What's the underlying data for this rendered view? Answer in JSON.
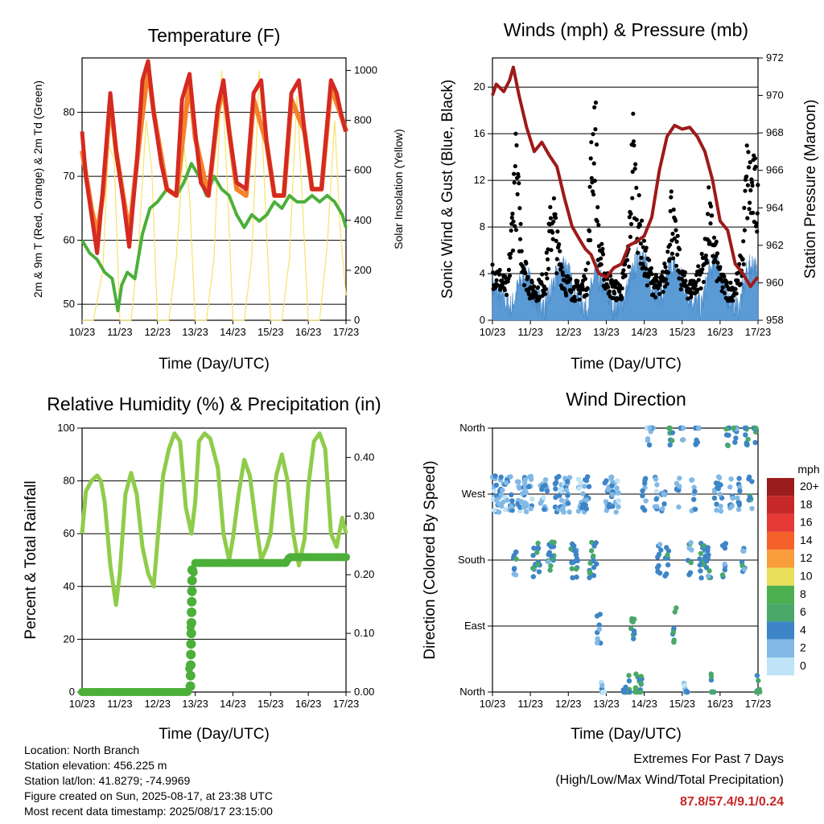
{
  "x_ticks": [
    "10/23",
    "11/23",
    "12/23",
    "13/23",
    "14/23",
    "15/23",
    "16/23",
    "17/23"
  ],
  "x_label": "Time (Day/UTC)",
  "panels": {
    "temperature": {
      "title": "Temperature (F)",
      "ylabel": "2m & 9m T (Red, Orange) & 2m Td (Green)",
      "y2label": "Solar Insolation (Yellow)",
      "yticks": [
        "50",
        "60",
        "70",
        "80"
      ],
      "y2ticks": [
        "0",
        "200",
        "400",
        "600",
        "800",
        "1000"
      ]
    },
    "winds": {
      "title": "Winds (mph) & Pressure (mb)",
      "ylabel": "Sonic Wind & Gust (Blue, Black)",
      "y2label": "Station Pressure (Maroon)",
      "yticks": [
        "0",
        "4",
        "8",
        "12",
        "16",
        "20"
      ],
      "y2ticks": [
        "958",
        "960",
        "962",
        "964",
        "966",
        "968",
        "970",
        "972"
      ]
    },
    "humidity": {
      "title": "Relative Humidity (%) & Precipitation (in)",
      "ylabel": "Percent & Total Rainfall",
      "yticks": [
        "0",
        "20",
        "40",
        "60",
        "80",
        "100"
      ],
      "y2ticks": [
        "0.00",
        "0.10",
        "0.20",
        "0.30",
        "0.40"
      ]
    },
    "direction": {
      "title": "Wind Direction",
      "ylabel": "Direction (Colored By Speed)",
      "yticks": [
        "North",
        "East",
        "South",
        "West",
        "North"
      ],
      "legend_title": "mph",
      "legend_labels": [
        "20+",
        "18",
        "16",
        "14",
        "12",
        "10",
        "8",
        "6",
        "4",
        "2",
        "0"
      ],
      "legend_colors": [
        "#9b1c1c",
        "#c62828",
        "#e53935",
        "#f4622a",
        "#f99c3b",
        "#e8df5a",
        "#4caf50",
        "#4aa86a",
        "#3d85c6",
        "#82b9e6",
        "#bfe3f7"
      ]
    }
  },
  "info": {
    "location": "Location: North Branch",
    "elevation": "Station elevation: 456.225 m",
    "latlon": "Station lat/lon: 41.8279; -74.9969",
    "created": "Figure created on Sun, 2025-08-17, at 23:38 UTC",
    "recent": "Most recent data timestamp: 2025/08/17 23:15:00"
  },
  "extremes": {
    "title": "Extremes For Past 7 Days",
    "subtitle": "(High/Low/Max Wind/Total Precipitation)",
    "values": "87.8/57.4/9.1/0.24"
  },
  "chart_data": [
    {
      "type": "line",
      "x_unit": "day of month (UTC)",
      "xlim": [
        10,
        17
      ],
      "ylim": [
        47.5,
        88.5
      ],
      "y2lim": [
        0,
        1050
      ],
      "series_2m_temp": {
        "x": [
          10.0,
          10.1,
          10.25,
          10.4,
          10.55,
          10.75,
          10.9,
          11.1,
          11.25,
          11.45,
          11.6,
          11.75,
          11.9,
          12.1,
          12.25,
          12.5,
          12.65,
          12.85,
          13.0,
          13.15,
          13.35,
          13.6,
          13.75,
          13.9,
          14.1,
          14.35,
          14.55,
          14.75,
          14.9,
          15.1,
          15.35,
          15.55,
          15.75,
          15.9,
          16.1,
          16.35,
          16.6,
          16.75,
          16.9,
          17.0
        ],
        "y": [
          77,
          70,
          64,
          58,
          68,
          83,
          74,
          66,
          59,
          72,
          85,
          88,
          80,
          72,
          68,
          67,
          82,
          86,
          77,
          69,
          67,
          81,
          85,
          77,
          69,
          68,
          83,
          85,
          75,
          67,
          67,
          83,
          85,
          77,
          68,
          68,
          85,
          83,
          79,
          77
        ]
      },
      "series_9m_temp": {
        "x": [
          10.0,
          10.25,
          10.4,
          10.55,
          10.75,
          10.9,
          11.25,
          11.45,
          11.75,
          11.9,
          12.25,
          12.5,
          12.85,
          13.0,
          13.35,
          13.6,
          13.75,
          14.1,
          14.35,
          14.55,
          14.9,
          15.1,
          15.35,
          15.55,
          15.9,
          16.1,
          16.35,
          16.6,
          16.9,
          17.0
        ],
        "y": [
          74,
          65,
          61,
          67,
          82,
          74,
          61,
          72,
          87,
          80,
          68,
          67,
          85,
          76,
          67,
          80,
          84,
          68,
          67,
          82,
          75,
          67,
          67,
          82,
          77,
          68,
          68,
          84,
          79,
          77
        ]
      },
      "series_2m_dewpoint": {
        "x": [
          10.0,
          10.2,
          10.4,
          10.6,
          10.8,
          10.95,
          11.05,
          11.2,
          11.4,
          11.6,
          11.8,
          12.0,
          12.25,
          12.5,
          12.7,
          12.9,
          13.1,
          13.3,
          13.5,
          13.7,
          13.9,
          14.1,
          14.3,
          14.5,
          14.7,
          14.9,
          15.1,
          15.3,
          15.5,
          15.7,
          15.9,
          16.1,
          16.3,
          16.5,
          16.7,
          16.9,
          17.0
        ],
        "y": [
          60,
          58,
          57,
          55,
          54,
          49,
          53,
          55,
          54,
          61,
          65,
          66,
          68,
          67,
          69,
          72,
          70,
          67,
          70,
          68,
          67,
          64,
          62,
          64,
          63,
          64,
          66,
          65,
          67,
          66,
          66,
          67,
          66,
          67,
          66,
          64,
          62
        ]
      },
      "series_solar": {
        "x": [
          10.0,
          10.3,
          10.55,
          10.7,
          10.85,
          11.0,
          11.3,
          11.5,
          11.7,
          11.85,
          12.0,
          12.3,
          12.5,
          12.7,
          12.85,
          13.0,
          13.3,
          13.5,
          13.7,
          13.85,
          14.0,
          14.3,
          14.5,
          14.7,
          14.85,
          15.0,
          15.3,
          15.5,
          15.7,
          15.85,
          16.0,
          16.3,
          16.5,
          16.7,
          16.85,
          17.0
        ],
        "y": [
          0,
          0,
          200,
          700,
          650,
          0,
          0,
          300,
          800,
          600,
          0,
          0,
          250,
          700,
          500,
          0,
          0,
          250,
          1000,
          550,
          0,
          0,
          250,
          1000,
          500,
          0,
          0,
          250,
          900,
          450,
          0,
          0,
          300,
          800,
          350,
          100
        ]
      }
    },
    {
      "type": "scatter",
      "xlim": [
        10,
        17
      ],
      "ylim": [
        0,
        22.5
      ],
      "y2lim": [
        958,
        972
      ],
      "series_sonic_wind": {
        "x": [
          10.0,
          10.2,
          10.5,
          10.7,
          10.9,
          11.1,
          11.4,
          11.6,
          11.9,
          12.2,
          12.5,
          12.7,
          12.9,
          13.2,
          13.5,
          13.7,
          13.9,
          14.2,
          14.5,
          14.7,
          14.9,
          15.2,
          15.5,
          15.7,
          15.9,
          16.2,
          16.5,
          16.7,
          16.9,
          17.0
        ],
        "y": [
          3,
          2,
          1,
          3,
          4,
          2,
          1,
          3,
          5,
          2,
          1,
          4,
          3,
          1,
          2,
          4,
          6,
          3,
          2,
          5,
          4,
          2,
          1,
          4,
          5,
          2,
          1,
          4,
          5,
          3
        ]
      },
      "series_gust": {
        "x": [
          10.0,
          10.2,
          10.4,
          10.5,
          10.6,
          10.8,
          11.0,
          11.2,
          11.4,
          11.5,
          11.6,
          11.7,
          11.9,
          12.1,
          12.3,
          12.5,
          12.6,
          12.7,
          12.8,
          13.0,
          13.2,
          13.4,
          13.6,
          13.7,
          13.8,
          14.0,
          14.2,
          14.4,
          14.6,
          14.7,
          14.8,
          15.0,
          15.2,
          15.4,
          15.6,
          15.7,
          15.8,
          16.0,
          16.2,
          16.4,
          16.6,
          16.7,
          16.8,
          17.0
        ],
        "y": [
          5,
          4,
          3,
          8,
          15,
          6,
          3,
          3,
          4,
          8,
          11,
          7,
          4,
          3,
          3,
          4,
          14,
          20,
          7,
          4,
          3,
          3,
          7,
          17,
          11,
          6,
          4,
          3,
          5,
          11,
          8,
          4,
          3,
          4,
          6,
          10,
          8,
          4,
          3,
          3,
          6,
          14,
          13,
          12
        ]
      },
      "series_pressure": {
        "x": [
          10.0,
          10.1,
          10.3,
          10.45,
          10.55,
          10.7,
          10.9,
          11.1,
          11.3,
          11.5,
          11.7,
          11.9,
          12.1,
          12.3,
          12.45,
          12.6,
          12.8,
          13.0,
          13.2,
          13.4,
          13.6,
          13.8,
          14.0,
          14.2,
          14.4,
          14.6,
          14.8,
          15.0,
          15.2,
          15.4,
          15.6,
          15.8,
          16.0,
          16.2,
          16.4,
          16.6,
          16.8,
          16.95,
          17.0
        ],
        "y": [
          970,
          970.6,
          970.2,
          970.8,
          971.5,
          970,
          968.3,
          967,
          967.5,
          966.8,
          966.2,
          964.5,
          963,
          962.3,
          961.8,
          961.5,
          960.5,
          960.3,
          960.8,
          961,
          962,
          962.2,
          962.5,
          963.5,
          966,
          967.8,
          968.4,
          968.2,
          968.3,
          967.8,
          967,
          965.5,
          963.3,
          962.8,
          961,
          960.5,
          959.8,
          960.2,
          960.3
        ]
      }
    },
    {
      "type": "line",
      "xlim": [
        10,
        17
      ],
      "ylim": [
        0,
        100
      ],
      "y2lim": [
        0,
        0.45
      ],
      "series_relative_humidity": {
        "x": [
          10.0,
          10.1,
          10.25,
          10.4,
          10.5,
          10.6,
          10.75,
          10.9,
          11.0,
          11.15,
          11.3,
          11.45,
          11.6,
          11.75,
          11.9,
          12.0,
          12.15,
          12.3,
          12.45,
          12.6,
          12.75,
          12.9,
          13.0,
          13.1,
          13.25,
          13.4,
          13.6,
          13.75,
          13.9,
          14.0,
          14.15,
          14.3,
          14.45,
          14.6,
          14.75,
          14.9,
          15.0,
          15.15,
          15.3,
          15.45,
          15.6,
          15.75,
          15.9,
          16.0,
          16.15,
          16.3,
          16.45,
          16.6,
          16.75,
          16.9,
          17.0
        ],
        "y": [
          60,
          76,
          80,
          82,
          80,
          72,
          48,
          33,
          45,
          75,
          83,
          75,
          55,
          45,
          40,
          57,
          82,
          92,
          98,
          95,
          70,
          60,
          72,
          95,
          98,
          96,
          85,
          60,
          50,
          58,
          75,
          88,
          82,
          65,
          50,
          55,
          60,
          82,
          90,
          80,
          60,
          48,
          58,
          78,
          95,
          98,
          92,
          60,
          55,
          66,
          60
        ]
      },
      "series_precipitation": {
        "x": [
          10.0,
          10.5,
          11.0,
          11.5,
          12.0,
          12.5,
          12.8,
          12.85,
          12.9,
          12.95,
          13.0,
          13.5,
          14.0,
          14.5,
          15.0,
          15.4,
          15.5,
          16.0,
          16.5,
          17.0
        ],
        "y": [
          0,
          0,
          0,
          0,
          0,
          0,
          0,
          0.05,
          0.15,
          0.2,
          0.22,
          0.22,
          0.22,
          0.22,
          0.22,
          0.22,
          0.23,
          0.23,
          0.23,
          0.23
        ]
      }
    },
    {
      "type": "scatter",
      "xlim": [
        10,
        17
      ],
      "y_unit": "direction (North, East, South, West, North)",
      "series_wind_direction": {
        "x": [
          10.05,
          10.15,
          10.25,
          10.35,
          10.5,
          10.6,
          10.7,
          10.8,
          10.9,
          11.0,
          11.1,
          11.2,
          11.3,
          11.4,
          11.5,
          11.6,
          11.7,
          11.8,
          11.9,
          12.0,
          12.1,
          12.2,
          12.3,
          12.4,
          12.5,
          12.6,
          12.7,
          12.8,
          12.9,
          13.0,
          13.1,
          13.2,
          13.3,
          13.5,
          13.6,
          13.7,
          13.8,
          13.9,
          14.0,
          14.1,
          14.2,
          14.3,
          14.4,
          14.5,
          14.6,
          14.7,
          14.8,
          14.9,
          15.0,
          15.1,
          15.2,
          15.3,
          15.4,
          15.5,
          15.6,
          15.7,
          15.8,
          15.9,
          16.0,
          16.1,
          16.2,
          16.3,
          16.4,
          16.5,
          16.6,
          16.7,
          16.8,
          16.9,
          17.0
        ],
        "y": [
          "West",
          "West",
          "West",
          "West",
          "West",
          "South",
          "West",
          "West",
          "West",
          "West",
          "South",
          "South",
          "West",
          "West",
          "South",
          "South",
          "West",
          "West",
          "West",
          "West",
          "South",
          "South",
          "West",
          "West",
          "West",
          "South",
          "South",
          "East",
          "North",
          "West",
          "West",
          "West",
          "West",
          "North",
          "North",
          "East",
          "North",
          "North",
          "West",
          "North",
          "North",
          "West",
          "South",
          "West",
          "South",
          "North",
          "East",
          "West",
          "North",
          "North",
          "South",
          "West",
          "North",
          "South",
          "South",
          "South",
          "North",
          "West",
          "West",
          "South",
          "North",
          "West",
          "North",
          "West",
          "South",
          "North",
          "West",
          "North",
          "North"
        ],
        "speed": [
          2,
          3,
          3,
          2,
          3,
          4,
          2,
          3,
          2,
          2,
          4,
          4,
          2,
          2,
          4,
          5,
          3,
          2,
          2,
          3,
          4,
          4,
          2,
          3,
          3,
          5,
          4,
          3,
          2,
          2,
          3,
          3,
          2,
          4,
          5,
          6,
          7,
          5,
          3,
          2,
          3,
          2,
          4,
          3,
          4,
          6,
          6,
          3,
          3,
          2,
          4,
          3,
          4,
          4,
          5,
          4,
          6,
          3,
          3,
          4,
          5,
          3,
          4,
          3,
          4,
          5,
          4,
          5,
          6
        ]
      }
    }
  ]
}
